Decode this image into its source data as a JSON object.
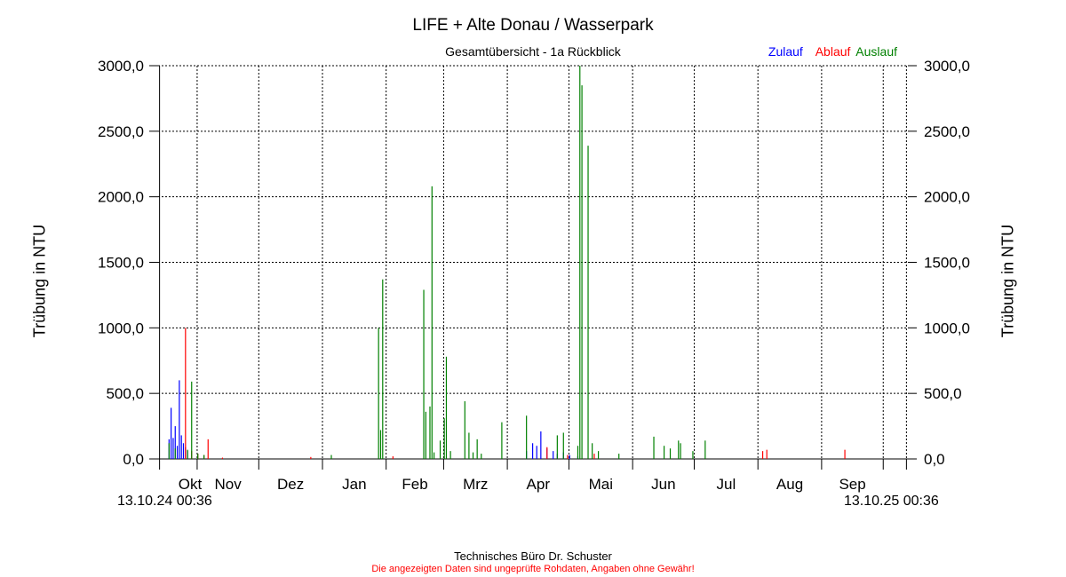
{
  "header": {
    "title": "LIFE + Alte Donau / Wasserpark",
    "subtitle": "Gesamtübersicht - 1a Rückblick"
  },
  "footer": {
    "company": "Technisches Büro Dr. Schuster",
    "disclaimer": "Die angezeigten Daten sind ungeprüfte Rohdaten, Angaben ohne Gewähr!"
  },
  "chart_data": {
    "type": "bar",
    "ylabel": "Trübung in NTU",
    "ylabel_right": "Trübung in NTU",
    "ylim": [
      0,
      3000
    ],
    "yticks": [
      "0,0",
      "500,0",
      "1000,0",
      "1500,0",
      "2000,0",
      "2500,0",
      "3000,0"
    ],
    "ytick_values": [
      0,
      500,
      1000,
      1500,
      2000,
      2500,
      3000
    ],
    "grid": true,
    "legend_position": "top-right",
    "x_start_label": "13.10.24 00:36",
    "x_end_label": "13.10.25 00:36",
    "months": [
      "Okt",
      "Nov",
      "Dez",
      "Jan",
      "Feb",
      "Mrz",
      "Apr",
      "Mai",
      "Jun",
      "Jul",
      "Aug",
      "Sep"
    ],
    "series": [
      {
        "name": "Zulauf",
        "color": "#0000ff",
        "points": [
          [
            1,
            150
          ],
          [
            2,
            390
          ],
          [
            3,
            160
          ],
          [
            4,
            250
          ],
          [
            5,
            100
          ],
          [
            6,
            600
          ],
          [
            7,
            180
          ],
          [
            8,
            120
          ],
          [
            9,
            90
          ],
          [
            10,
            60
          ],
          [
            175,
            60
          ],
          [
            178,
            120
          ],
          [
            180,
            100
          ],
          [
            182,
            210
          ],
          [
            185,
            80
          ],
          [
            188,
            60
          ],
          [
            190,
            40
          ],
          [
            193,
            50
          ],
          [
            196,
            30
          ],
          [
            200,
            20
          ]
        ]
      },
      {
        "name": "Ablauf",
        "color": "#ff0000",
        "points": [
          [
            9,
            1000
          ],
          [
            12,
            60
          ],
          [
            15,
            40
          ],
          [
            18,
            30
          ],
          [
            20,
            150
          ],
          [
            27,
            10
          ],
          [
            70,
            15
          ],
          [
            110,
            20
          ],
          [
            185,
            90
          ],
          [
            195,
            30
          ],
          [
            208,
            40
          ],
          [
            290,
            60
          ],
          [
            292,
            70
          ],
          [
            330,
            70
          ]
        ]
      },
      {
        "name": "Auslauf",
        "color": "#008000",
        "points": [
          [
            1,
            120
          ],
          [
            4,
            80
          ],
          [
            10,
            70
          ],
          [
            12,
            590
          ],
          [
            15,
            40
          ],
          [
            18,
            30
          ],
          [
            80,
            30
          ],
          [
            103,
            1000
          ],
          [
            104,
            220
          ],
          [
            105,
            1370
          ],
          [
            125,
            1290
          ],
          [
            126,
            360
          ],
          [
            128,
            400
          ],
          [
            129,
            2080
          ],
          [
            130,
            50
          ],
          [
            133,
            140
          ],
          [
            135,
            310
          ],
          [
            136,
            780
          ],
          [
            138,
            60
          ],
          [
            145,
            440
          ],
          [
            147,
            200
          ],
          [
            149,
            50
          ],
          [
            151,
            150
          ],
          [
            153,
            40
          ],
          [
            163,
            280
          ],
          [
            175,
            330
          ],
          [
            190,
            180
          ],
          [
            193,
            200
          ],
          [
            200,
            100
          ],
          [
            201,
            3000
          ],
          [
            202,
            2850
          ],
          [
            205,
            2390
          ],
          [
            207,
            120
          ],
          [
            210,
            60
          ],
          [
            220,
            40
          ],
          [
            237,
            170
          ],
          [
            242,
            100
          ],
          [
            245,
            80
          ],
          [
            249,
            140
          ],
          [
            250,
            120
          ],
          [
            256,
            60
          ],
          [
            262,
            140
          ]
        ]
      }
    ]
  }
}
